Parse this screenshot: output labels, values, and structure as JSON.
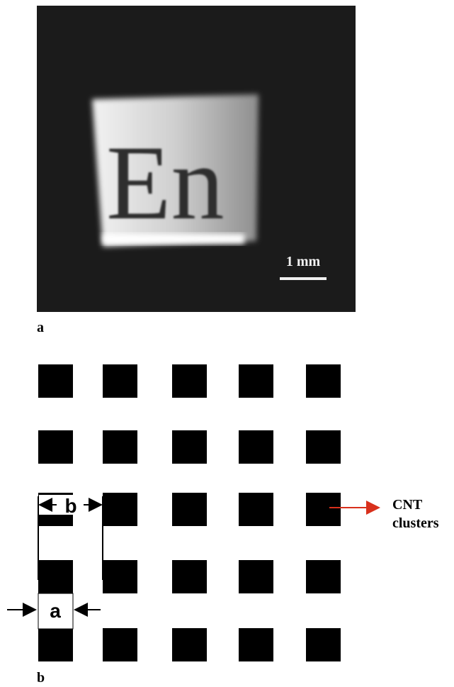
{
  "panels": [
    {
      "label": "a",
      "image_text": "En",
      "scale_bar": "1 mm"
    },
    {
      "label": "b",
      "dimension_labels": [
        "b",
        "a"
      ],
      "annotation": [
        "CNT",
        "clusters"
      ]
    }
  ]
}
